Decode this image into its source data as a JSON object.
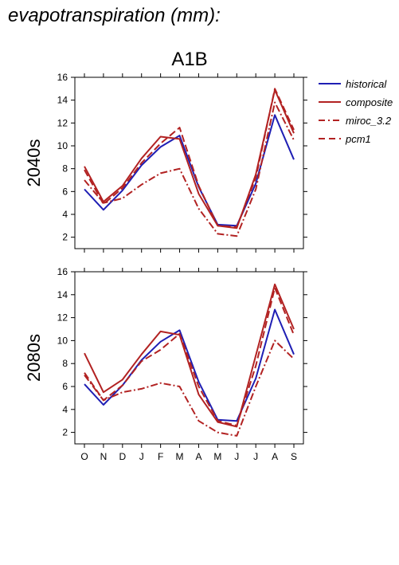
{
  "page": {
    "title": "evapotranspiration (mm):"
  },
  "chart_data": [
    {
      "type": "line",
      "title": "A1B",
      "ylabel": "2040s",
      "xlabel": "",
      "categories": [
        "O",
        "N",
        "D",
        "J",
        "F",
        "M",
        "A",
        "M",
        "J",
        "J",
        "A",
        "S"
      ],
      "ylim": [
        1,
        16
      ],
      "yticks": [
        2,
        4,
        6,
        8,
        10,
        12,
        14,
        16
      ],
      "grid": false,
      "legend": "right",
      "series": [
        {
          "name": "historical",
          "color": "#1f1fb4",
          "dash": "solid",
          "values": [
            6.2,
            4.4,
            6.1,
            8.3,
            9.9,
            10.9,
            6.4,
            3.1,
            3.0,
            6.7,
            12.7,
            8.8
          ]
        },
        {
          "name": "composite",
          "color": "#b22222",
          "dash": "solid",
          "values": [
            8.2,
            5.1,
            6.5,
            8.9,
            10.8,
            10.6,
            5.8,
            3.0,
            2.8,
            7.5,
            14.9,
            11.1
          ]
        },
        {
          "name": "miroc_3.2",
          "color": "#b22222",
          "dash": "dashdot",
          "values": [
            7.0,
            5.0,
            5.4,
            6.6,
            7.6,
            8.0,
            4.5,
            2.3,
            2.1,
            6.2,
            13.8,
            10.5
          ]
        },
        {
          "name": "pcm1",
          "color": "#b22222",
          "dash": "dash",
          "values": [
            7.9,
            4.9,
            6.3,
            8.5,
            10.2,
            11.6,
            6.5,
            3.0,
            2.9,
            7.2,
            15.0,
            11.4
          ]
        }
      ]
    },
    {
      "type": "line",
      "title": "",
      "ylabel": "2080s",
      "xlabel": "",
      "categories": [
        "O",
        "N",
        "D",
        "J",
        "F",
        "M",
        "A",
        "M",
        "J",
        "J",
        "A",
        "S"
      ],
      "ylim": [
        1,
        16
      ],
      "yticks": [
        2,
        4,
        6,
        8,
        10,
        12,
        14,
        16
      ],
      "grid": false,
      "legend": "none",
      "series": [
        {
          "name": "historical",
          "color": "#1f1fb4",
          "dash": "solid",
          "values": [
            6.2,
            4.4,
            6.1,
            8.3,
            9.9,
            10.9,
            6.4,
            3.1,
            3.0,
            6.7,
            12.7,
            8.8
          ]
        },
        {
          "name": "composite",
          "color": "#b22222",
          "dash": "solid",
          "values": [
            8.9,
            5.5,
            6.6,
            8.8,
            10.8,
            10.5,
            5.3,
            2.9,
            2.5,
            8.7,
            14.9,
            11.0
          ]
        },
        {
          "name": "miroc_3.2",
          "color": "#b22222",
          "dash": "dashdot",
          "values": [
            7.0,
            4.8,
            5.5,
            5.8,
            6.3,
            6.0,
            3.0,
            2.0,
            1.7,
            6.0,
            10.0,
            8.4
          ]
        },
        {
          "name": "pcm1",
          "color": "#b22222",
          "dash": "dash",
          "values": [
            7.2,
            4.8,
            6.1,
            8.2,
            9.2,
            10.6,
            6.0,
            3.0,
            2.6,
            7.8,
            14.6,
            10.5
          ]
        }
      ]
    }
  ]
}
